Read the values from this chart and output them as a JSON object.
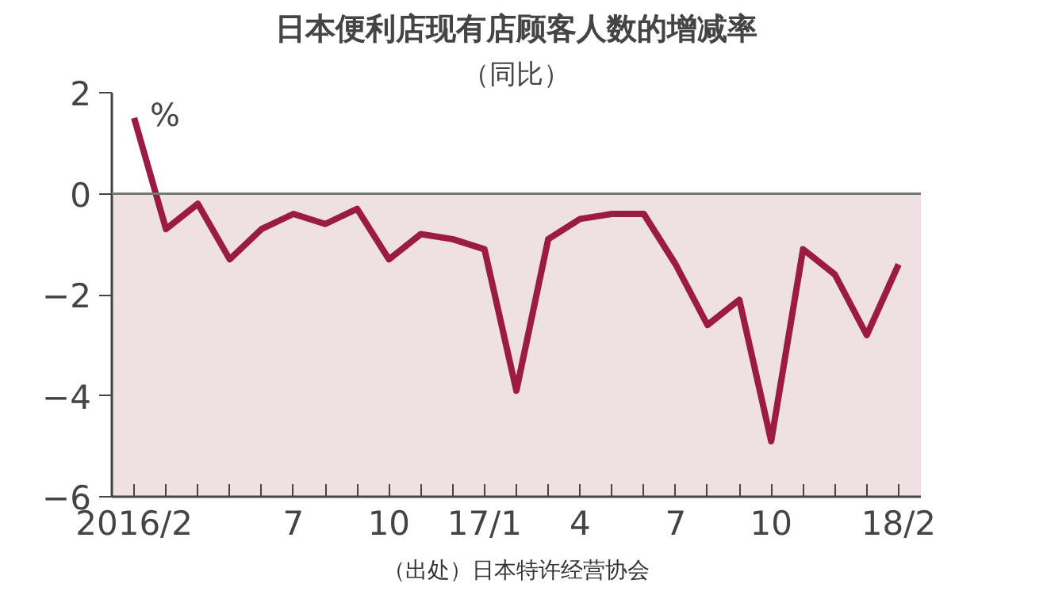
{
  "chart_data": {
    "type": "line",
    "title": "日本便利店现有店顾客人数的增减率",
    "subtitle": "（同比）",
    "ylabel": "%",
    "categories": [
      "2016/2",
      null,
      null,
      null,
      null,
      "7",
      null,
      null,
      "10",
      null,
      null,
      "17/1",
      null,
      null,
      "4",
      null,
      null,
      "7",
      null,
      null,
      "10",
      null,
      null,
      null,
      "18/2"
    ],
    "series": [
      {
        "color": "#9b1b45",
        "values": [
          1.5,
          -0.7,
          -0.2,
          -1.3,
          -0.7,
          -0.4,
          -0.6,
          -0.3,
          -1.3,
          -0.8,
          -0.9,
          -1.1,
          -3.9,
          -0.9,
          -0.5,
          -0.4,
          -0.4,
          -1.4,
          -2.6,
          -2.1,
          -4.9,
          -1.1,
          -1.6,
          -2.8,
          -1.4
        ]
      }
    ],
    "ylim": [
      -6,
      2
    ],
    "yticks": [
      -6,
      -4,
      -2,
      0,
      2
    ],
    "grid": false,
    "bands": [
      {
        "axis": "y",
        "from": -6,
        "to": 0,
        "color": "#efe0e3"
      }
    ],
    "ref_lines": [
      {
        "axis": "y",
        "value": 0,
        "color": "#777777"
      }
    ],
    "annotations": [
      "（出处）日本特许经营协会"
    ]
  }
}
